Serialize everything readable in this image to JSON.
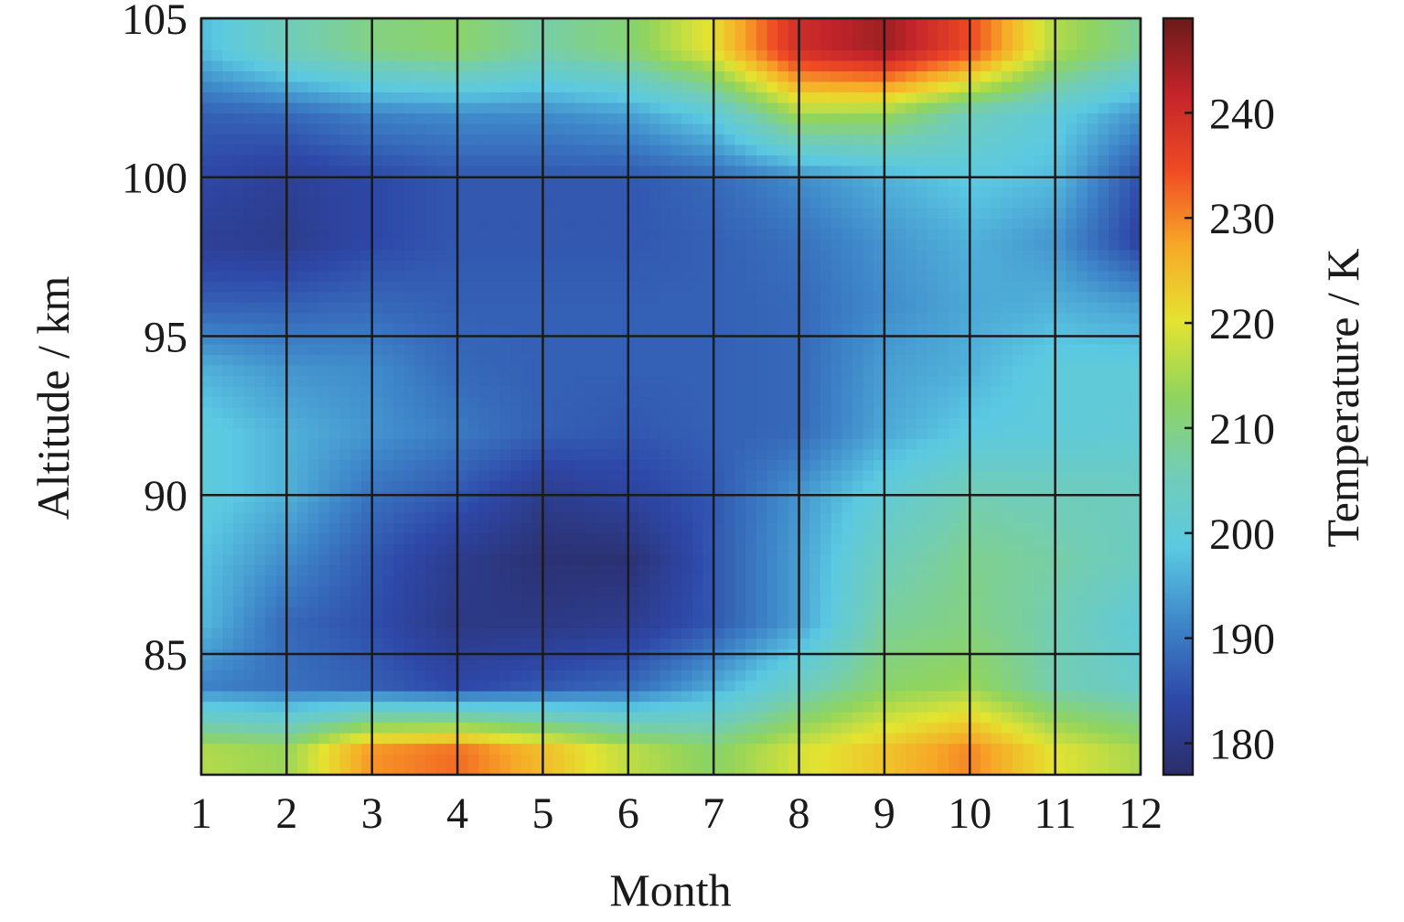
{
  "chart_data": {
    "type": "heatmap",
    "title": "",
    "xlabel": "Month",
    "ylabel": "Altitude / km",
    "colorbar_label": "Temperature / K",
    "x": [
      1,
      2,
      3,
      4,
      5,
      6,
      7,
      8,
      9,
      10,
      11,
      12
    ],
    "x_tick_labels": [
      "1",
      "2",
      "3",
      "4",
      "5",
      "6",
      "7",
      "8",
      "9",
      "10",
      "11",
      "12"
    ],
    "y": [
      82,
      84,
      86,
      88,
      90,
      92,
      94,
      96,
      98,
      100,
      102,
      104
    ],
    "y_tick_labels": [
      "85",
      "90",
      "95",
      "100",
      "105"
    ],
    "y_ticks": [
      85,
      90,
      95,
      100,
      105
    ],
    "xlim": [
      1,
      12
    ],
    "ylim": [
      81.2,
      105
    ],
    "grid": true,
    "colorbar_range": [
      177,
      249
    ],
    "colorbar_ticks": [
      180,
      190,
      200,
      210,
      220,
      230,
      240
    ],
    "colorbar_tick_labels": [
      "180",
      "190",
      "200",
      "210",
      "220",
      "230",
      "240"
    ],
    "colormap": [
      "#2b2e6b",
      "#2e48a8",
      "#3e86c9",
      "#5bc9e2",
      "#72cdb5",
      "#8fd45e",
      "#e4e330",
      "#f7a827",
      "#ef4a24",
      "#c3242a",
      "#6b1a1a"
    ],
    "z": [
      [
        216,
        214,
        229,
        232,
        225,
        217,
        212,
        219,
        224,
        230,
        220,
        215
      ],
      [
        191,
        189,
        187,
        184,
        186,
        188,
        195,
        204,
        212,
        214,
        206,
        203
      ],
      [
        197,
        188,
        185,
        180,
        180,
        181,
        186,
        194,
        208,
        210,
        206,
        200
      ],
      [
        198,
        192,
        186,
        181,
        178,
        178,
        186,
        194,
        205,
        209,
        207,
        204
      ],
      [
        200,
        196,
        189,
        186,
        181,
        183,
        186,
        193,
        201,
        206,
        205,
        204
      ],
      [
        200,
        196,
        193,
        190,
        187,
        186,
        187,
        188,
        195,
        199,
        200,
        201
      ],
      [
        196,
        193,
        192,
        188,
        187,
        187,
        187,
        188,
        194,
        196,
        200,
        200
      ],
      [
        187,
        187,
        188,
        187,
        187,
        187,
        187,
        188,
        192,
        195,
        196,
        194
      ],
      [
        182,
        181,
        184,
        186,
        186,
        186,
        187,
        189,
        193,
        196,
        193,
        183
      ],
      [
        184,
        182,
        184,
        186,
        186,
        186,
        188,
        192,
        196,
        199,
        197,
        185
      ],
      [
        187,
        188,
        191,
        192,
        192,
        194,
        200,
        215,
        214,
        205,
        200,
        193
      ],
      [
        197,
        205,
        210,
        212,
        207,
        211,
        221,
        240,
        245,
        235,
        216,
        208
      ]
    ]
  }
}
